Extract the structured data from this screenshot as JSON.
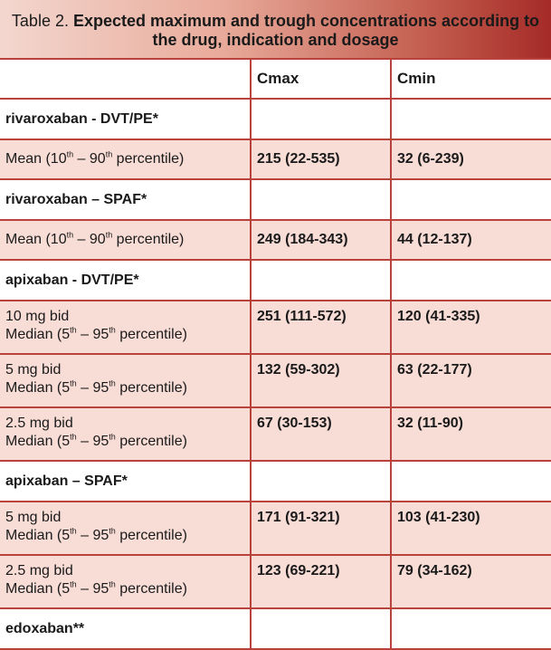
{
  "title": {
    "prefix": "Table 2. ",
    "bold": "Expected maximum and trough concentrations according to the drug, indication and dosage"
  },
  "columns": [
    "",
    "Cmax",
    "Cmin"
  ],
  "rows": [
    {
      "type": "group",
      "label": "rivaroxaban - DVT/PE*"
    },
    {
      "type": "data",
      "line1": "",
      "line2_pre": "Mean (10",
      "sup_a": "th",
      "mid": " – 90",
      "sup_b": "th",
      "post": " percentile)",
      "cmax": "215 (22-535)",
      "cmin": "32 (6-239)"
    },
    {
      "type": "group",
      "label": "rivaroxaban – SPAF*"
    },
    {
      "type": "data",
      "line1": "",
      "line2_pre": "Mean (10",
      "sup_a": "th",
      "mid": " – 90",
      "sup_b": "th",
      "post": " percentile)",
      "cmax": "249 (184-343)",
      "cmin": "44 (12-137)"
    },
    {
      "type": "group",
      "label": "apixaban - DVT/PE*"
    },
    {
      "type": "data",
      "line1": "10 mg bid",
      "line2_pre": "Median (5",
      "sup_a": "th",
      "mid": " – 95",
      "sup_b": "th",
      "post": " percentile)",
      "cmax": "251 (111-572)",
      "cmin": "120 (41-335)"
    },
    {
      "type": "data",
      "line1": "5 mg bid",
      "line2_pre": "Median (5",
      "sup_a": "th",
      "mid": " – 95",
      "sup_b": "th",
      "post": " percentile)",
      "cmax": "132 (59-302)",
      "cmin": "63 (22-177)"
    },
    {
      "type": "data",
      "line1": "2.5 mg bid",
      "line2_pre": "Median (5",
      "sup_a": "th",
      "mid": " – 95",
      "sup_b": "th",
      "post": " percentile)",
      "cmax": "67 (30-153)",
      "cmin": "32 (11-90)"
    },
    {
      "type": "group",
      "label": "apixaban – SPAF*"
    },
    {
      "type": "data",
      "line1": "5 mg bid",
      "line2_pre": "Median (5",
      "sup_a": "th",
      "mid": " – 95",
      "sup_b": "th",
      "post": " percentile)",
      "cmax": "171 (91-321)",
      "cmin": "103 (41-230)"
    },
    {
      "type": "data",
      "line1": "2.5 mg bid",
      "line2_pre": "Median (5",
      "sup_a": "th",
      "mid": " – 95",
      "sup_b": "th",
      "post": " percentile)",
      "cmax": "123 (69-221)",
      "cmin": "79 (34-162)"
    },
    {
      "type": "group",
      "label": "edoxaban**"
    }
  ],
  "colors": {
    "border": "#b9433b",
    "row_fill": "#f8dcd6",
    "title_dark": "#a52a28"
  }
}
